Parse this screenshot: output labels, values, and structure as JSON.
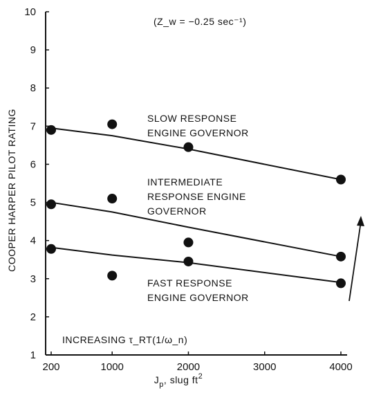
{
  "chart_data": {
    "type": "scatter",
    "title": "",
    "xlabel": "J_p, slug ft²",
    "ylabel": "COOPER HARPER PILOT RATING",
    "xticks": [
      200,
      1000,
      2000,
      3000,
      4000
    ],
    "yticks": [
      1,
      2,
      3,
      4,
      5,
      6,
      7,
      8,
      9,
      10
    ],
    "ylim": [
      1,
      10
    ],
    "grid": false,
    "annotations": {
      "condition": "(Z_w = −0.25 sec⁻¹)",
      "increasing": "INCREASING τ_RT(1/ω_n)"
    },
    "series": [
      {
        "name": "SLOW RESPONSE ENGINE GOVERNOR",
        "label_lines": [
          "SLOW RESPONSE",
          "ENGINE GOVERNOR"
        ],
        "points": [
          [
            200,
            6.9
          ],
          [
            1000,
            7.05
          ],
          [
            2000,
            6.45
          ],
          [
            4000,
            5.6
          ]
        ],
        "fit": [
          [
            200,
            6.95
          ],
          [
            1000,
            6.75
          ],
          [
            2000,
            6.4
          ],
          [
            4000,
            5.6
          ]
        ]
      },
      {
        "name": "INTERMEDIATE RESPONSE ENGINE GOVERNOR",
        "label_lines": [
          "INTERMEDIATE",
          "RESPONSE ENGINE",
          "GOVERNOR"
        ],
        "points": [
          [
            200,
            4.95
          ],
          [
            1000,
            5.1
          ],
          [
            4000,
            3.58
          ]
        ],
        "fit": [
          [
            200,
            5.0
          ],
          [
            1000,
            4.75
          ],
          [
            2000,
            4.35
          ],
          [
            4000,
            3.58
          ]
        ]
      },
      {
        "name": "FAST RESPONSE ENGINE GOVERNOR",
        "label_lines": [
          "FAST RESPONSE",
          "ENGINE GOVERNOR"
        ],
        "points": [
          [
            200,
            3.78
          ],
          [
            1000,
            3.08
          ],
          [
            2000,
            3.95
          ],
          [
            2000,
            3.45
          ],
          [
            4000,
            2.88
          ]
        ],
        "fit": [
          [
            200,
            3.82
          ],
          [
            1000,
            3.62
          ],
          [
            2000,
            3.42
          ],
          [
            4000,
            2.9
          ]
        ]
      }
    ]
  }
}
